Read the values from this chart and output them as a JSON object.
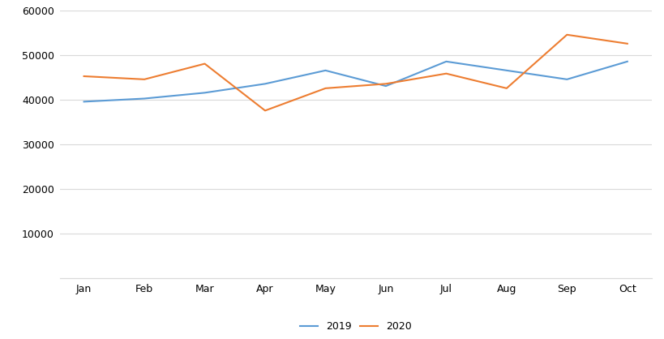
{
  "months": [
    "Jan",
    "Feb",
    "Mar",
    "Apr",
    "May",
    "Jun",
    "Jul",
    "Aug",
    "Sep",
    "Oct"
  ],
  "series_2019": [
    39500,
    40200,
    41500,
    43500,
    46500,
    43000,
    48500,
    46500,
    44500,
    48500
  ],
  "series_2020": [
    45200,
    44500,
    48000,
    37500,
    42500,
    43500,
    45800,
    42500,
    54500,
    52500
  ],
  "color_2019": "#5b9bd5",
  "color_2020": "#ed7d31",
  "ylim": [
    0,
    60000
  ],
  "yticks": [
    0,
    10000,
    20000,
    30000,
    40000,
    50000,
    60000
  ],
  "legend_labels": [
    "2019",
    "2020"
  ],
  "background_color": "#ffffff",
  "grid_color": "#d9d9d9",
  "linewidth": 1.5
}
